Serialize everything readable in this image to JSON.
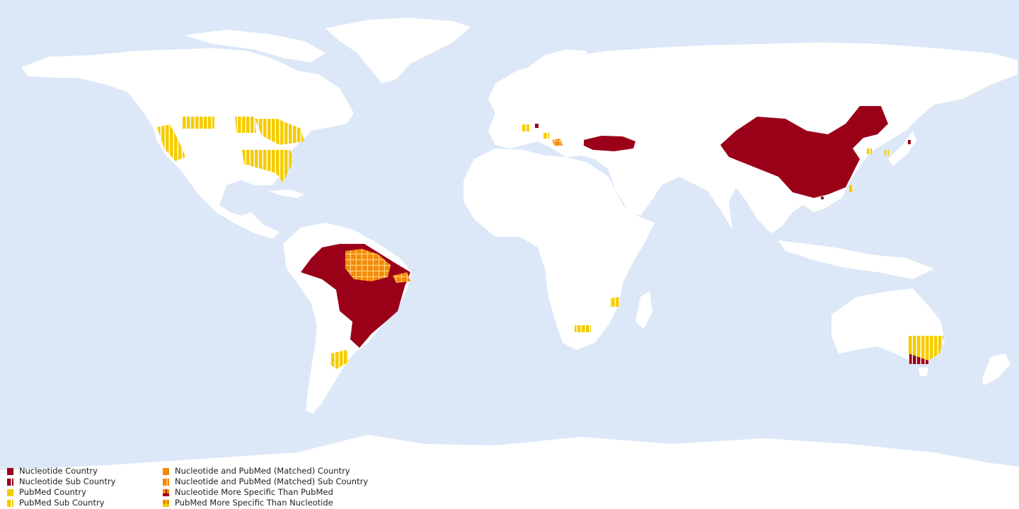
{
  "colors": {
    "ocean": "#dce8f8",
    "land": "#ffffff",
    "nucleotide": "#9b0019",
    "pubmed": "#f5cc00",
    "matched": "#f48a0b"
  },
  "regions": {
    "nucleotide_country": [
      "China",
      "Brazil",
      "Turkey"
    ],
    "nucleotide_sub_country": [
      "Victoria (Australia)"
    ],
    "pubmed_sub_country": [
      "California",
      "Mountain West (USA)",
      "Midwest (USA)",
      "Northeast (USA)",
      "Southeast (USA)",
      "Uruguay / Southern Brazil",
      "Mozambique",
      "Lesotho / South Africa",
      "New South Wales (Australia)",
      "Northern Italy",
      "Southern Italy",
      "Korea",
      "Japan",
      "Taiwan"
    ],
    "matched_sub_country": [
      "Amazonas / Pará (Brazil)",
      "Ceará / Pernambuco (Brazil)",
      "Greece"
    ]
  },
  "legend": {
    "items": [
      {
        "label": "Nucleotide Country",
        "swatch": "nucleotide-solid"
      },
      {
        "label": "Nucleotide Sub Country",
        "swatch": "nucleotide-stripe"
      },
      {
        "label": "PubMed Country",
        "swatch": "pubmed-solid"
      },
      {
        "label": "PubMed  Sub Country",
        "swatch": "pubmed-stripe"
      },
      {
        "label": "Nucleotide and PubMed (Matched) Country",
        "swatch": "matched-solid"
      },
      {
        "label": "Nucleotide and PubMed (Matched) Sub Country",
        "swatch": "matched-stripe"
      },
      {
        "label": "Nucleotide More Specific Than PubMed",
        "swatch": "nuc-more-specific"
      },
      {
        "label": "PubMed More Specific Than Nucleotide",
        "swatch": "pub-more-specific"
      }
    ]
  }
}
